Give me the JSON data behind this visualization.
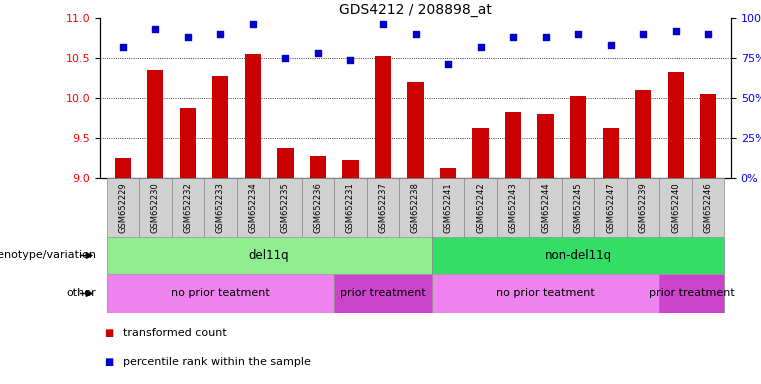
{
  "title": "GDS4212 / 208898_at",
  "samples": [
    "GSM652229",
    "GSM652230",
    "GSM652232",
    "GSM652233",
    "GSM652234",
    "GSM652235",
    "GSM652236",
    "GSM652231",
    "GSM652237",
    "GSM652238",
    "GSM652241",
    "GSM652242",
    "GSM652243",
    "GSM652244",
    "GSM652245",
    "GSM652247",
    "GSM652239",
    "GSM652240",
    "GSM652246"
  ],
  "bar_values": [
    9.25,
    10.35,
    9.88,
    10.27,
    10.55,
    9.38,
    9.27,
    9.22,
    10.52,
    10.2,
    9.12,
    9.62,
    9.82,
    9.8,
    10.03,
    9.62,
    10.1,
    10.32,
    10.05
  ],
  "dot_values": [
    82,
    93,
    88,
    90,
    96,
    75,
    78,
    74,
    96,
    90,
    71,
    82,
    88,
    88,
    90,
    83,
    90,
    92,
    90
  ],
  "bar_color": "#cc0000",
  "dot_color": "#0000cc",
  "ylim_left": [
    9,
    11
  ],
  "ylim_right": [
    0,
    100
  ],
  "yticks_left": [
    9,
    9.5,
    10,
    10.5,
    11
  ],
  "yticks_right": [
    0,
    25,
    50,
    75,
    100
  ],
  "ytick_labels_right": [
    "0%",
    "25%",
    "50%",
    "75%",
    "100%"
  ],
  "gridlines": [
    9.5,
    10.0,
    10.5
  ],
  "genotype_groups": [
    {
      "label": "del11q",
      "start": 0,
      "end": 10,
      "color": "#90ee90"
    },
    {
      "label": "non-del11q",
      "start": 10,
      "end": 19,
      "color": "#33dd66"
    }
  ],
  "other_groups": [
    {
      "label": "no prior teatment",
      "start": 0,
      "end": 7,
      "color": "#ee82ee"
    },
    {
      "label": "prior treatment",
      "start": 7,
      "end": 10,
      "color": "#cc44cc"
    },
    {
      "label": "no prior teatment",
      "start": 10,
      "end": 17,
      "color": "#ee82ee"
    },
    {
      "label": "prior treatment",
      "start": 17,
      "end": 19,
      "color": "#cc44cc"
    }
  ],
  "legend_items": [
    {
      "label": "transformed count",
      "color": "#cc0000"
    },
    {
      "label": "percentile rank within the sample",
      "color": "#0000cc"
    }
  ],
  "genotype_label": "genotype/variation",
  "other_label": "other",
  "background_color": "#ffffff",
  "label_box_color": "#d0d0d0",
  "label_box_edge_color": "#888888"
}
